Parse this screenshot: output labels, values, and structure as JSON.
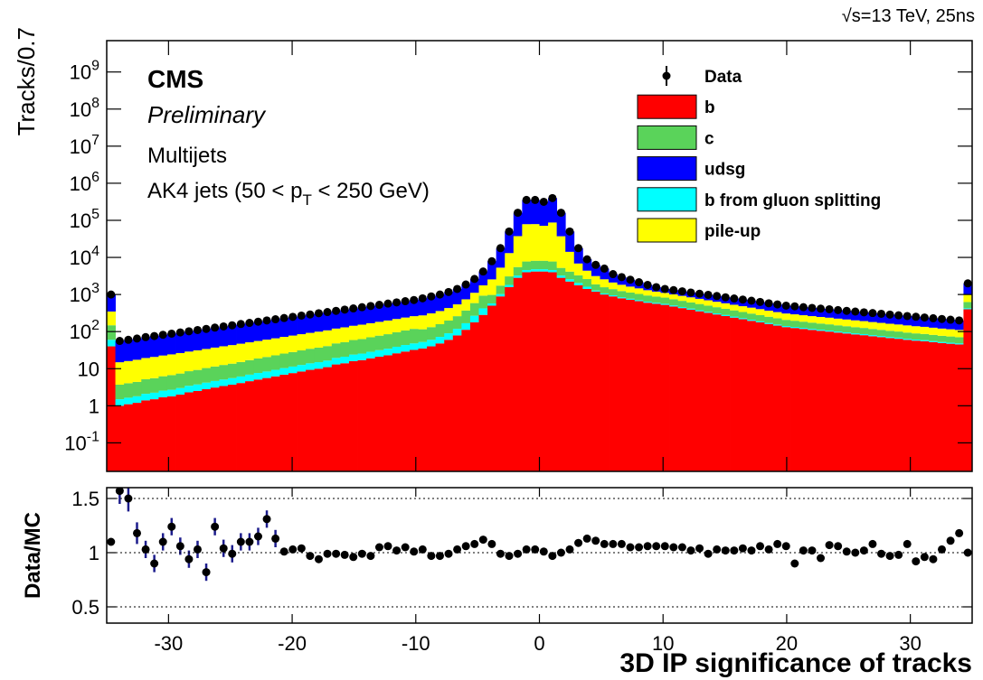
{
  "chart_data": [
    {
      "type": "histogram",
      "stacked": true,
      "log_y": true,
      "y_label": "Tracks/0.7",
      "energy_label": "√s=13 TeV, 25ns",
      "experiment": "CMS",
      "status": "Preliminary",
      "sample": "Multijets",
      "selection": [
        "AK4 jets (50 < p",
        "T",
        " < 250 GeV)"
      ],
      "legend_corner": "upper right",
      "xlim": [
        -35,
        35
      ],
      "ylim": [
        0.017,
        7000000000
      ],
      "yticks": [
        {
          "value": 0.1,
          "label": "10^-1"
        },
        1,
        10,
        {
          "value": 100,
          "label": "10^2"
        },
        {
          "value": 1000,
          "label": "10^3"
        },
        {
          "value": 10000,
          "label": "10^4"
        },
        {
          "value": 100000,
          "label": "10^5"
        },
        {
          "value": 1000000,
          "label": "10^6"
        },
        {
          "value": 10000000,
          "label": "10^7"
        },
        {
          "value": 100000000,
          "label": "10^8"
        },
        {
          "value": 1000000000,
          "label": "10^9"
        }
      ],
      "bins": [
        -35,
        -34.3,
        -33.6,
        -32.9,
        -32.2,
        -31.5,
        -30.8,
        -30.1,
        -29.4,
        -28.7,
        -28,
        -27.3,
        -26.6,
        -25.9,
        -25.2,
        -24.5,
        -23.8,
        -23.1,
        -22.4,
        -21.7,
        -21,
        -20.3,
        -19.6,
        -18.9,
        -18.2,
        -17.5,
        -16.8,
        -16.1,
        -15.4,
        -14.7,
        -14,
        -13.3,
        -12.6,
        -11.9,
        -11.2,
        -10.5,
        -9.8,
        -9.1,
        -8.4,
        -7.7,
        -7,
        -6.3,
        -5.6,
        -4.9,
        -4.2,
        -3.5,
        -2.8,
        -2.1,
        -1.4,
        -0.7,
        0,
        0.7,
        1.4,
        2.1,
        2.8,
        3.5,
        4.2,
        4.9,
        5.6,
        6.3,
        7,
        7.7,
        8.4,
        9.1,
        9.8,
        10.5,
        11.2,
        11.9,
        12.6,
        13.3,
        14,
        14.7,
        15.4,
        16.1,
        16.8,
        17.5,
        18.2,
        18.9,
        19.6,
        20.3,
        21,
        21.7,
        22.4,
        23.1,
        23.8,
        24.5,
        25.2,
        25.9,
        26.6,
        27.3,
        28,
        28.7,
        29.4,
        30.1,
        30.8,
        31.5,
        32.2,
        32.9,
        33.6,
        34.3,
        35
      ],
      "data_points": {
        "name": "Data",
        "color": "#000000",
        "values": [
          1000,
          56,
          60,
          65,
          71,
          76,
          82,
          88,
          95,
          102,
          110,
          118,
          128,
          138,
          148,
          160,
          172,
          185,
          200,
          215,
          232,
          250,
          270,
          290,
          313,
          337,
          363,
          392,
          422,
          455,
          490,
          528,
          570,
          614,
          660,
          710,
          790,
          890,
          1000,
          1170,
          1410,
          1860,
          2630,
          4170,
          7900,
          17800,
          50000,
          160000,
          355000,
          355000,
          316000,
          398000,
          160000,
          50000,
          17800,
          8900,
          6300,
          5000,
          3550,
          2950,
          2510,
          2140,
          1820,
          1580,
          1410,
          1310,
          1220,
          1130,
          1050,
          980,
          910,
          840,
          780,
          730,
          680,
          630,
          580,
          540,
          500,
          480,
          455,
          435,
          415,
          400,
          380,
          363,
          347,
          331,
          316,
          302,
          288,
          275,
          263,
          251,
          240,
          229,
          219,
          209,
          200,
          2000
        ]
      },
      "series": [
        {
          "name": "b",
          "color": "#ff0000",
          "values": [
            40,
            1,
            1.1,
            1.2,
            1.4,
            1.5,
            1.7,
            1.8,
            2,
            2.3,
            2.5,
            2.8,
            3.1,
            3.4,
            3.7,
            4.1,
            4.6,
            5.1,
            5.6,
            6.2,
            6.9,
            7.6,
            8.4,
            9.3,
            10,
            11,
            13,
            14,
            16,
            17,
            19,
            21,
            23,
            26,
            29,
            32,
            35,
            40,
            48,
            60,
            79,
            112,
            178,
            282,
            500,
            890,
            1580,
            2820,
            3980,
            4170,
            4170,
            3980,
            2820,
            2240,
            1780,
            1410,
            1200,
            1000,
            890,
            790,
            720,
            660,
            600,
            560,
            525,
            475,
            430,
            390,
            353,
            320,
            290,
            262,
            238,
            215,
            195,
            177,
            160,
            145,
            132,
            125,
            118,
            111,
            105,
            100,
            94,
            89,
            84,
            80,
            75,
            71,
            67,
            64,
            60,
            57,
            55,
            52,
            49,
            47,
            45,
            400
          ]
        },
        {
          "name": "c",
          "color": "#5ad35a",
          "values": [
            88,
            2.2,
            2.4,
            2.6,
            3.1,
            3.3,
            3.7,
            4,
            4.4,
            5.1,
            5.5,
            6.2,
            6.8,
            7.5,
            8.1,
            9,
            10.1,
            11.2,
            12.3,
            13.6,
            15.2,
            16.7,
            18.5,
            20.5,
            22,
            24.2,
            28.6,
            30.8,
            35.2,
            37.4,
            41.8,
            46.2,
            50.6,
            57.2,
            63.8,
            70.4,
            63,
            72,
            86.4,
            108,
            142,
            202,
            320,
            508,
            400,
            712,
            1264,
            2256,
            3184,
            3336,
            3336,
            3184,
            1974,
            1568,
            1246,
            987,
            600,
            500,
            445,
            395,
            360,
            330,
            300,
            280,
            263,
            238,
            215,
            195,
            177,
            160,
            145,
            131,
            119,
            108,
            97.5,
            88.5,
            80,
            72.5,
            66,
            62.5,
            59,
            55.5,
            52.5,
            50,
            47,
            44.5,
            42,
            40,
            37.5,
            35.5,
            33.5,
            32,
            30,
            28.5,
            27.5,
            26,
            24.5,
            23.5,
            22.5,
            200
          ]
        },
        {
          "name": "udsg",
          "color": "#0000ff",
          "values": [
            652,
            41.1,
            43.9,
            47.6,
            51.6,
            55.3,
            59.3,
            63.7,
            68.6,
            73.1,
            78.8,
            84,
            90.9,
            97.8,
            104.7,
            112.8,
            120.6,
            129.1,
            139.3,
            149.1,
            160.1,
            171.9,
            184.9,
            197.6,
            213.4,
            228.9,
            242.3,
            261.8,
            278.4,
            301.1,
            321.7,
            344.7,
            370.9,
            395,
            420.7,
            449.6,
            516.5,
            580,
            641.6,
            738,
            867.3,
            1118,
            1517,
            2405,
            5345,
            12504,
            36919,
            122501,
            276239,
            275868,
            244668,
            310639,
            122783,
            35856,
            10947,
            4511,
            3156,
            2430,
            1443,
            1120,
            878,
            676,
            514,
            385,
            304,
            302,
            301,
            292,
            286,
            282,
            273,
            261,
            250,
            246,
            238,
            226,
            213,
            204,
            193,
            188,
            179,
            174,
            167,
            163,
            156,
            150.7,
            145.7,
            139.2,
            135,
            130.1,
            125.2,
            119.5,
            116.2,
            111.3,
            105.6,
            101.6,
            98.3,
            93.4,
            89.3,
            972
          ]
        },
        {
          "name": "b from gluon splitting",
          "color": "#00ffff",
          "values": [
            20,
            0.5,
            0.55,
            0.6,
            0.7,
            0.75,
            0.85,
            0.9,
            1,
            1.15,
            1.25,
            1.4,
            1.55,
            1.7,
            1.85,
            2.05,
            2.3,
            2.55,
            2.8,
            3.1,
            3.45,
            3.8,
            4.2,
            4.65,
            5,
            5.5,
            6.5,
            7,
            8,
            8.5,
            9.5,
            10.5,
            11.5,
            13,
            14.5,
            16,
            17.5,
            20,
            24,
            30,
            39.5,
            56,
            89,
            141,
            75,
            134,
            237,
            423,
            597,
            626,
            626,
            597,
            423,
            336,
            267,
            212,
            84,
            70,
            62.3,
            55.3,
            50.4,
            46.2,
            42,
            39.2,
            36.8,
            33.3,
            30.1,
            27.3,
            24.7,
            22.4,
            20.3,
            18.3,
            16.7,
            15.1,
            13.7,
            12.4,
            11.2,
            10.2,
            9.2,
            8.8,
            8.3,
            7.8,
            7.4,
            7,
            6.6,
            6.2,
            5.9,
            5.6,
            5.3,
            5,
            4.7,
            4.5,
            4.2,
            4,
            3.9,
            3.6,
            3.4,
            3.3,
            3.2,
            28
          ]
        },
        {
          "name": "pile-up",
          "color": "#ffff00",
          "values": [
            200,
            11.2,
            12,
            13,
            14.2,
            15.2,
            16.4,
            17.6,
            19,
            20.4,
            22,
            23.6,
            25.6,
            27.6,
            29.6,
            32,
            34.4,
            37,
            40,
            43,
            46.4,
            50,
            54,
            58,
            62.6,
            67.4,
            72.6,
            78.4,
            84.4,
            91,
            98,
            105.6,
            114,
            122.8,
            132,
            142,
            158,
            178,
            200,
            234,
            282,
            372,
            526,
            834,
            1580,
            3560,
            10000,
            32000,
            71000,
            71000,
            63200,
            79600,
            32000,
            10000,
            3560,
            1780,
            1260,
            1000,
            710,
            590,
            502,
            428,
            364,
            316,
            282,
            262,
            244,
            226,
            210,
            196,
            182,
            168,
            156,
            146,
            136,
            126,
            116,
            108,
            100,
            96,
            91,
            87,
            83,
            80,
            76,
            72.6,
            69.4,
            66.2,
            63.2,
            60.4,
            57.6,
            55,
            52.6,
            50.2,
            48,
            45.8,
            43.8,
            41.8,
            40,
            400
          ]
        }
      ]
    },
    {
      "type": "errorbar",
      "y_label": "Data/MC",
      "x_label": "3D IP significance of tracks",
      "xlim": [
        -35,
        35
      ],
      "xticks": [
        -30,
        -20,
        -10,
        0,
        10,
        20,
        30
      ],
      "ylim": [
        0.35,
        1.6
      ],
      "yticks": [
        0.5,
        1,
        1.5
      ],
      "grid": true,
      "color": "#000000",
      "error_color": "#1c1c8c",
      "values": [
        1.1,
        1.57,
        1.5,
        1.18,
        1.03,
        0.9,
        1.1,
        1.24,
        1.06,
        0.94,
        1.03,
        0.82,
        1.24,
        1.04,
        0.99,
        1.1,
        1.1,
        1.15,
        1.31,
        1.13,
        1.01,
        1.03,
        1.04,
        0.97,
        0.94,
        0.99,
        0.99,
        0.98,
        0.96,
        0.99,
        0.97,
        1.05,
        1.06,
        1.02,
        1.05,
        1.01,
        1.03,
        0.97,
        0.97,
        0.99,
        1.03,
        1.06,
        1.08,
        1.12,
        1.08,
        0.99,
        0.97,
        0.99,
        1.03,
        1.03,
        1.01,
        0.97,
        1,
        1.03,
        1.09,
        1.13,
        1.11,
        1.08,
        1.08,
        1.08,
        1.05,
        1.05,
        1.06,
        1.06,
        1.06,
        1.05,
        1.05,
        1.02,
        1.04,
        0.99,
        1.03,
        1.02,
        1.02,
        1.04,
        1.02,
        1.06,
        1.03,
        1.08,
        1.06,
        0.9,
        1.02,
        1.02,
        0.95,
        1.07,
        1.06,
        1.01,
        1,
        1.02,
        1.08,
        0.99,
        0.97,
        0.98,
        1.08,
        0.92,
        0.96,
        0.94,
        1.03,
        1.11,
        1.18,
        1
      ],
      "errors": [
        0.02,
        0.12,
        0.12,
        0.1,
        0.08,
        0.08,
        0.08,
        0.08,
        0.08,
        0.08,
        0.08,
        0.08,
        0.08,
        0.08,
        0.08,
        0.08,
        0.08,
        0.08,
        0.08,
        0.08,
        0.03,
        0.03,
        0.03,
        0.03,
        0.03,
        0.03,
        0.03,
        0.03,
        0.03,
        0.03,
        0.03,
        0.03,
        0.03,
        0.03,
        0.03,
        0.03,
        0.02,
        0.02,
        0.02,
        0.02,
        0.02,
        0.02,
        0.02,
        0.02,
        0.01,
        0.01,
        0.01,
        0.01,
        0.01,
        0.01,
        0.01,
        0.01,
        0.01,
        0.01,
        0.01,
        0.01,
        0.01,
        0.01,
        0.01,
        0.01,
        0.01,
        0.01,
        0.01,
        0.01,
        0.01,
        0.01,
        0.01,
        0.01,
        0.01,
        0.01,
        0.01,
        0.01,
        0.01,
        0.01,
        0.01,
        0.01,
        0.01,
        0.01,
        0.01,
        0.03,
        0.03,
        0.03,
        0.03,
        0.03,
        0.03,
        0.03,
        0.03,
        0.03,
        0.03,
        0.03,
        0.03,
        0.03,
        0.03,
        0.03,
        0.03,
        0.03,
        0.03,
        0.03,
        0.03,
        0.01
      ]
    }
  ]
}
